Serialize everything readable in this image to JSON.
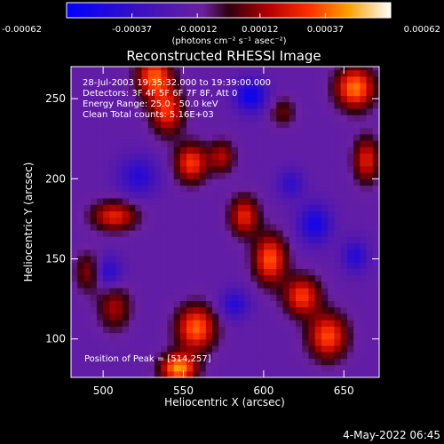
{
  "chart_data": {
    "type": "heatmap",
    "title": "Reconstructed RHESSI Image",
    "xlabel": "Heliocentric X (arcsec)",
    "ylabel": "Heliocentric Y (arcsec)",
    "xlim": [
      480,
      672
    ],
    "ylim": [
      76,
      270
    ],
    "x_ticks": [
      500,
      550,
      600,
      650
    ],
    "y_ticks": [
      100,
      150,
      200,
      250
    ],
    "x_tick_labels": [
      "500",
      "550",
      "600",
      "650"
    ],
    "y_tick_labels": [
      "100",
      "150",
      "200",
      "250"
    ],
    "colorbar": {
      "range": [
        -0.00062,
        0.00062
      ],
      "tick_values": [
        -0.00062,
        -0.00037,
        -0.00012,
        0.00012,
        0.00037,
        0.00062
      ],
      "tick_labels": [
        "-0.00062",
        "-0.00037",
        "-0.00012",
        "0.00012",
        "0.00037",
        "0.00062"
      ],
      "unit_label": "(photons cm⁻² s⁻¹ asec⁻²)"
    },
    "annotations": [
      "28-Jul-2003 19:35:32.000 to 19:39:00.000",
      "Detectors: 3F 4F 5F 6F 7F 8F, Att 0",
      "Energy Range: 25.0 - 50.0 keV",
      "Clean    Total counts: 5.16E+03"
    ],
    "peak_label": "Position of Peak = [514,257]",
    "bright_ridges": [
      {
        "x": 530,
        "y": 262,
        "w": 11,
        "h": 14,
        "v": 0.0005
      },
      {
        "x": 538,
        "y": 240,
        "w": 10,
        "h": 14,
        "v": 0.00042
      },
      {
        "x": 553,
        "y": 208,
        "w": 10,
        "h": 12,
        "v": 0.00045
      },
      {
        "x": 572,
        "y": 212,
        "w": 8,
        "h": 10,
        "v": 0.0003
      },
      {
        "x": 505,
        "y": 175,
        "w": 14,
        "h": 9,
        "v": 0.0004
      },
      {
        "x": 490,
        "y": 140,
        "w": 9,
        "h": 12,
        "v": 0.0003
      },
      {
        "x": 505,
        "y": 118,
        "w": 10,
        "h": 14,
        "v": 0.00028
      },
      {
        "x": 556,
        "y": 105,
        "w": 12,
        "h": 14,
        "v": 0.00052
      },
      {
        "x": 545,
        "y": 80,
        "w": 11,
        "h": 9,
        "v": 0.0006
      },
      {
        "x": 586,
        "y": 175,
        "w": 9,
        "h": 12,
        "v": 0.0004
      },
      {
        "x": 602,
        "y": 148,
        "w": 10,
        "h": 15,
        "v": 0.0005
      },
      {
        "x": 622,
        "y": 125,
        "w": 11,
        "h": 12,
        "v": 0.00045
      },
      {
        "x": 638,
        "y": 100,
        "w": 12,
        "h": 14,
        "v": 0.00048
      },
      {
        "x": 655,
        "y": 255,
        "w": 12,
        "h": 13,
        "v": 0.00055
      },
      {
        "x": 662,
        "y": 210,
        "w": 8,
        "h": 14,
        "v": 0.00038
      },
      {
        "x": 610,
        "y": 240,
        "w": 8,
        "h": 9,
        "v": 0.0002
      }
    ],
    "dark_regions": [
      {
        "x": 590,
        "y": 250,
        "w": 10,
        "h": 10,
        "v": -0.00042
      },
      {
        "x": 520,
        "y": 200,
        "w": 12,
        "h": 12,
        "v": -0.0003
      },
      {
        "x": 500,
        "y": 140,
        "w": 9,
        "h": 10,
        "v": -0.00035
      },
      {
        "x": 630,
        "y": 170,
        "w": 10,
        "h": 12,
        "v": -0.00038
      },
      {
        "x": 655,
        "y": 150,
        "w": 8,
        "h": 10,
        "v": -0.0003
      },
      {
        "x": 580,
        "y": 120,
        "w": 9,
        "h": 9,
        "v": -0.0003
      },
      {
        "x": 615,
        "y": 195,
        "w": 8,
        "h": 9,
        "v": -0.00025
      }
    ]
  },
  "footer": {
    "date": "4-May-2022 06:45"
  }
}
